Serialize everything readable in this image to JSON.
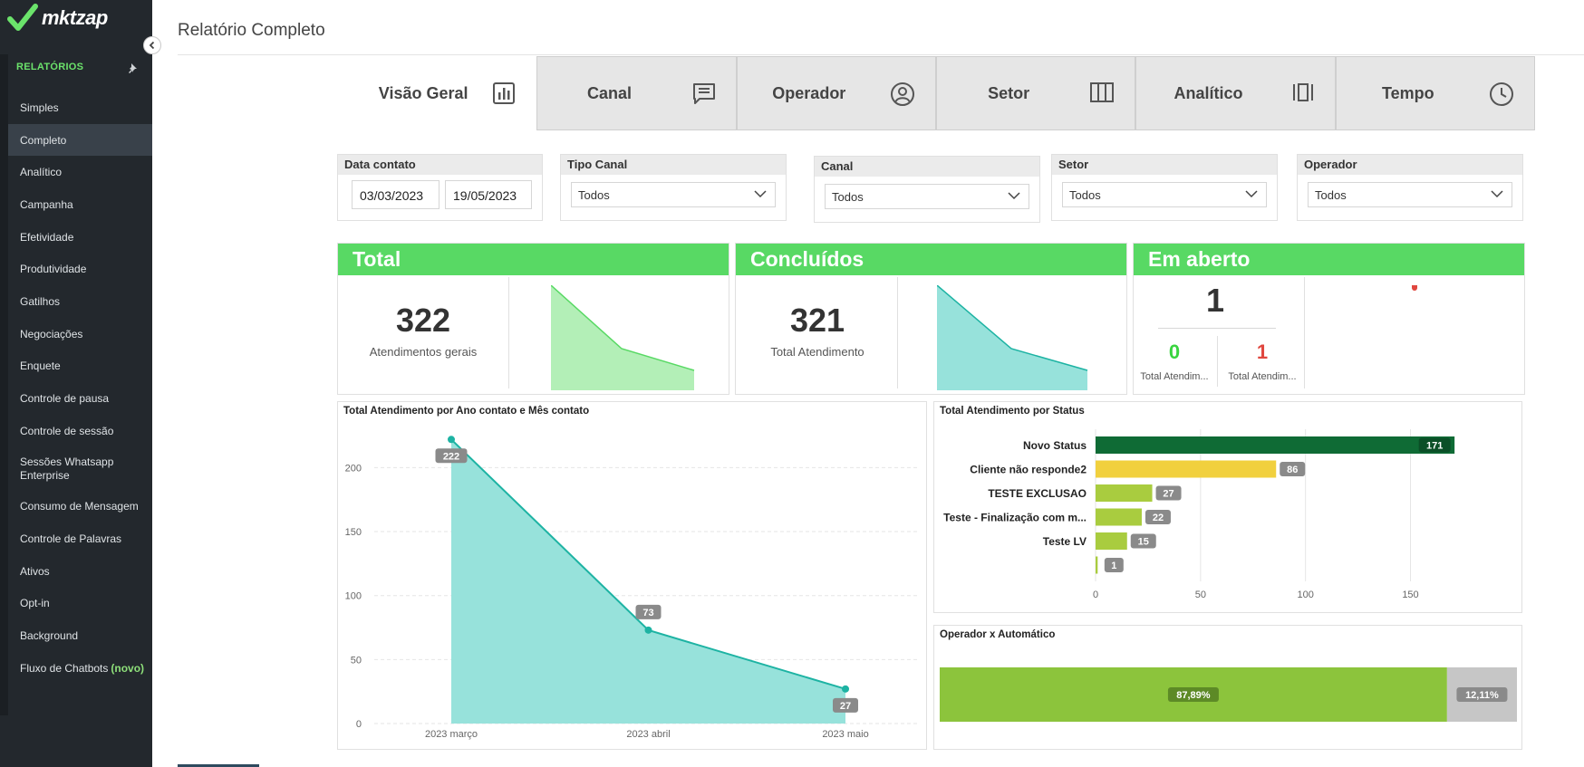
{
  "app": {
    "logo_text": "mktzap"
  },
  "sidebar": {
    "section_title": "RELATÓRIOS",
    "items": [
      {
        "label": "Simples"
      },
      {
        "label": "Completo",
        "active": true
      },
      {
        "label": "Analítico"
      },
      {
        "label": "Campanha"
      },
      {
        "label": "Efetividade"
      },
      {
        "label": "Produtividade"
      },
      {
        "label": "Gatilhos"
      },
      {
        "label": "Negociações"
      },
      {
        "label": "Enquete"
      },
      {
        "label": "Controle de pausa"
      },
      {
        "label": "Controle de sessão"
      },
      {
        "label": "Sessões Whatsapp Enterprise"
      },
      {
        "label": "Consumo de Mensagem"
      },
      {
        "label": "Controle de Palavras"
      },
      {
        "label": "Ativos"
      },
      {
        "label": "Opt-in"
      },
      {
        "label": "Background"
      },
      {
        "label": "Fluxo de Chatbots",
        "badge": "(novo)"
      }
    ]
  },
  "page": {
    "title": "Relatório Completo"
  },
  "tabs": [
    {
      "label": "Visão Geral",
      "icon": "bar-chart-icon",
      "active": true
    },
    {
      "label": "Canal",
      "icon": "message-icon"
    },
    {
      "label": "Operador",
      "icon": "user-circle-icon"
    },
    {
      "label": "Setor",
      "icon": "columns-icon"
    },
    {
      "label": "Analítico",
      "icon": "kanban-icon"
    },
    {
      "label": "Tempo",
      "icon": "clock-icon"
    }
  ],
  "filters": {
    "date": {
      "label": "Data contato",
      "start": "03/03/2023",
      "end": "19/05/2023"
    },
    "tipo_canal": {
      "label": "Tipo Canal",
      "value": "Todos"
    },
    "canal": {
      "label": "Canal",
      "value": "Todos"
    },
    "setor": {
      "label": "Setor",
      "value": "Todos"
    },
    "operador": {
      "label": "Operador",
      "value": "Todos"
    }
  },
  "kpis": {
    "total": {
      "title": "Total",
      "value": "322",
      "label": "Atendimentos gerais"
    },
    "concluidos": {
      "title": "Concluídos",
      "value": "321",
      "label": "Total Atendimento"
    },
    "em_aberto": {
      "title": "Em aberto",
      "value": "1",
      "left_value": "0",
      "left_label": "Total Atendim...",
      "right_value": "1",
      "right_label": "Total Atendim..."
    }
  },
  "colors": {
    "green_header": "#58d964",
    "teal": "#1db3a3",
    "teal_fill": "#97e2db",
    "light_green_fill": "#b3efb7",
    "dark_green": "#0f6b35",
    "yellow": "#f1d03e",
    "lime": "#a9cc3f"
  },
  "line_chart": {
    "title": "Total Atendimento por Ano contato e Mês contato",
    "chart_data": {
      "type": "area",
      "categories": [
        "2023 março",
        "2023 abril",
        "2023 maio"
      ],
      "values": [
        222,
        73,
        27
      ],
      "yticks": [
        0,
        50,
        100,
        150,
        200
      ],
      "ylim": [
        0,
        230
      ]
    }
  },
  "status_chart": {
    "title": "Total Atendimento por Status",
    "chart_data": {
      "type": "bar",
      "categories": [
        "Novo Status",
        "Cliente não responde2",
        "TESTE EXCLUSAO",
        "Teste - Finalização com m...",
        "Teste LV",
        ""
      ],
      "values": [
        171,
        86,
        27,
        22,
        15,
        1
      ],
      "colors": [
        "#0f6b35",
        "#f1d03e",
        "#a9cc3f",
        "#a9cc3f",
        "#a9cc3f",
        "#a9cc3f"
      ],
      "xticks": [
        0,
        50,
        100,
        150
      ],
      "xlim": [
        0,
        180
      ]
    }
  },
  "ratio_chart": {
    "title": "Operador x Automático",
    "chart_data": {
      "type": "bar",
      "series": [
        {
          "label": "87,89%",
          "value": 87.89,
          "color": "#8cc43c"
        },
        {
          "label": "12,11%",
          "value": 12.11,
          "color": "#c6c6c6"
        }
      ]
    }
  }
}
